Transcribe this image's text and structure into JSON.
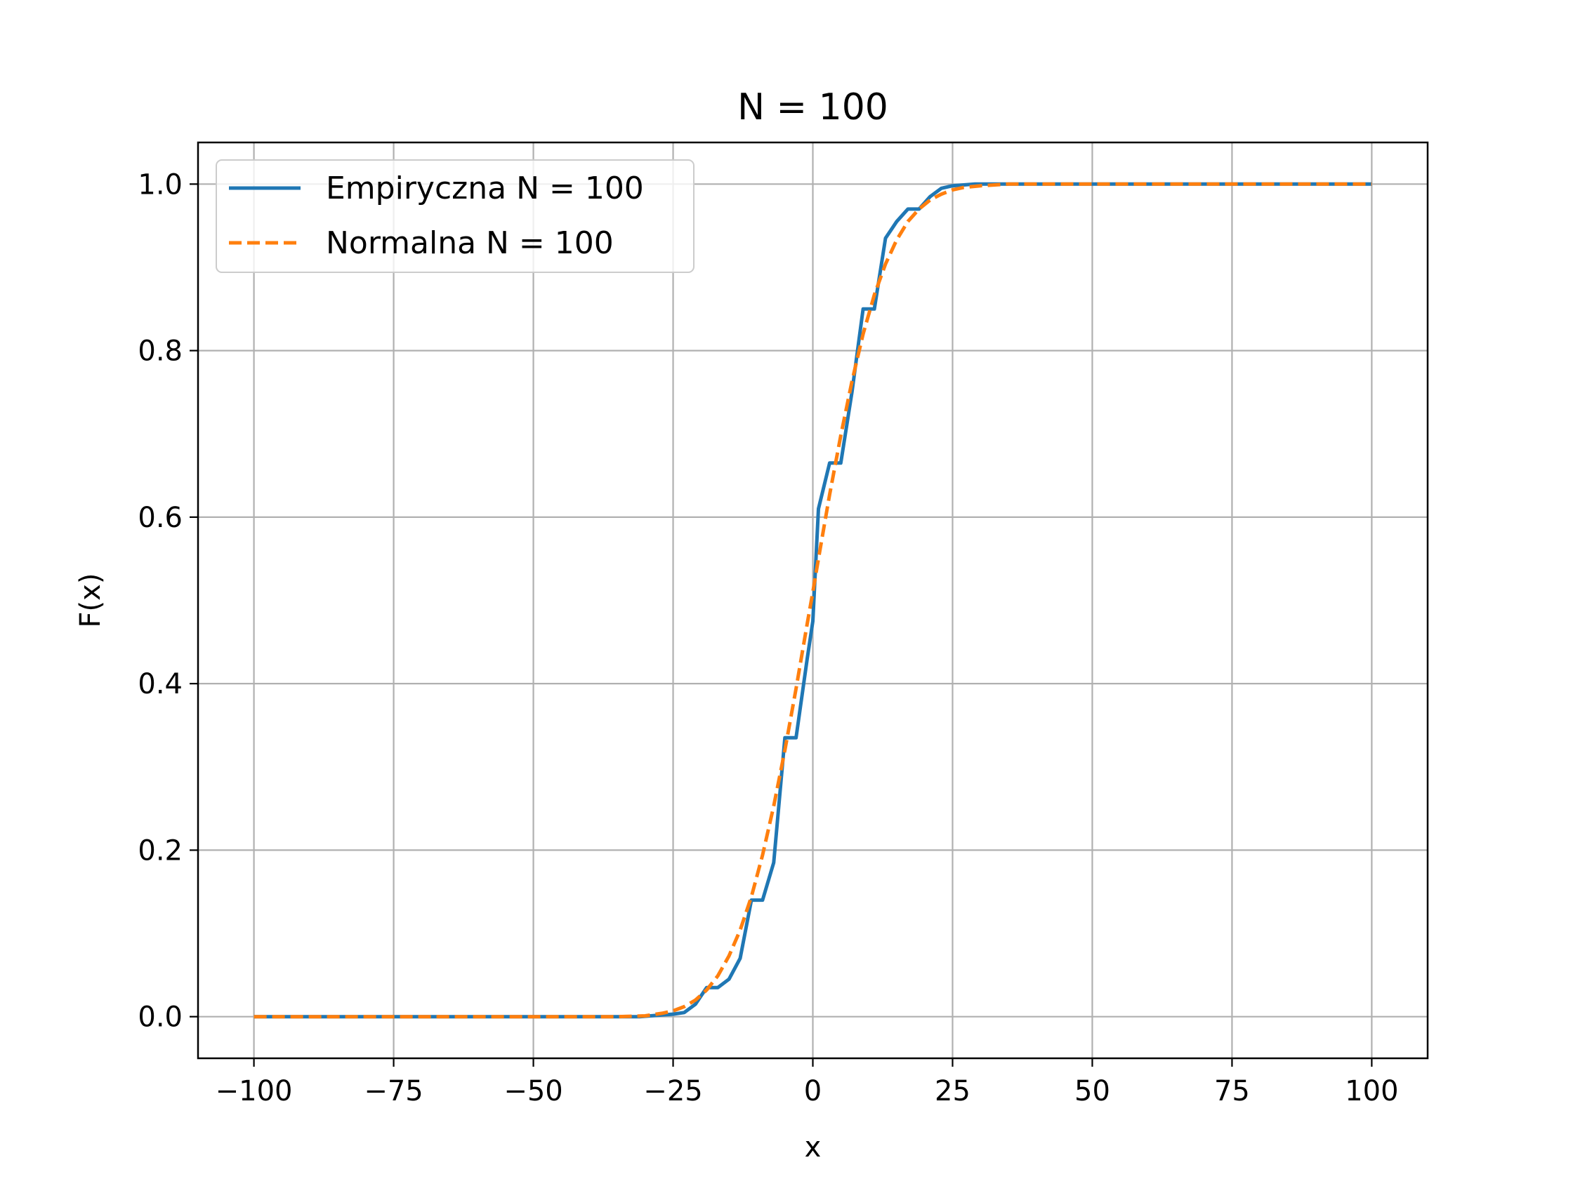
{
  "chart_data": {
    "type": "line",
    "title": "N = 100",
    "xlabel": "x",
    "ylabel": "F(x)",
    "xlim": [
      -110,
      110
    ],
    "ylim": [
      -0.05,
      1.05
    ],
    "x_ticks": [
      -100,
      -75,
      -50,
      -25,
      0,
      25,
      50,
      75,
      100
    ],
    "x_tick_labels": [
      "−100",
      "−75",
      "−50",
      "−25",
      "0",
      "25",
      "50",
      "75",
      "100"
    ],
    "y_ticks": [
      0.0,
      0.2,
      0.4,
      0.6,
      0.8,
      1.0
    ],
    "y_tick_labels": [
      "0.0",
      "0.2",
      "0.4",
      "0.6",
      "0.8",
      "1.0"
    ],
    "grid": true,
    "legend_position": "upper-left",
    "series": [
      {
        "name": "Empiryczna N = 100",
        "color": "#1f77b4",
        "style": "solid",
        "x": [
          -100,
          -31,
          -29,
          -27,
          -25,
          -23,
          -21,
          -19,
          -17,
          -15,
          -13,
          -11,
          -9,
          -7,
          -5,
          -3,
          -1,
          0,
          1,
          3,
          5,
          7,
          9,
          11,
          13,
          15,
          17,
          19,
          21,
          23,
          25,
          27,
          29,
          31,
          33,
          35,
          37,
          39,
          100
        ],
        "y": [
          0.0,
          0.0,
          0.001,
          0.002,
          0.003,
          0.005,
          0.015,
          0.035,
          0.035,
          0.045,
          0.07,
          0.14,
          0.14,
          0.185,
          0.335,
          0.335,
          0.43,
          0.475,
          0.61,
          0.665,
          0.665,
          0.75,
          0.85,
          0.85,
          0.935,
          0.955,
          0.97,
          0.97,
          0.985,
          0.995,
          0.998,
          0.999,
          1.0,
          1.0,
          1.0,
          1.0,
          1.0,
          1.0,
          1.0
        ]
      },
      {
        "name": "Normalna N = 100",
        "color": "#ff7f0e",
        "style": "dashed",
        "x": [
          -100,
          -35,
          -30,
          -27,
          -25,
          -23,
          -21,
          -19,
          -17,
          -15,
          -13,
          -11,
          -9,
          -7,
          -5,
          -3,
          -1,
          0,
          1,
          3,
          5,
          7,
          9,
          11,
          13,
          15,
          17,
          19,
          21,
          23,
          25,
          27,
          30,
          35,
          100
        ],
        "y": [
          0.0,
          0.0,
          0.001,
          0.004,
          0.007,
          0.012,
          0.02,
          0.032,
          0.049,
          0.073,
          0.104,
          0.144,
          0.194,
          0.253,
          0.32,
          0.394,
          0.472,
          0.51,
          0.55,
          0.627,
          0.698,
          0.763,
          0.82,
          0.867,
          0.904,
          0.933,
          0.955,
          0.97,
          0.981,
          0.988,
          0.993,
          0.996,
          0.998,
          1.0,
          1.0
        ]
      }
    ]
  }
}
